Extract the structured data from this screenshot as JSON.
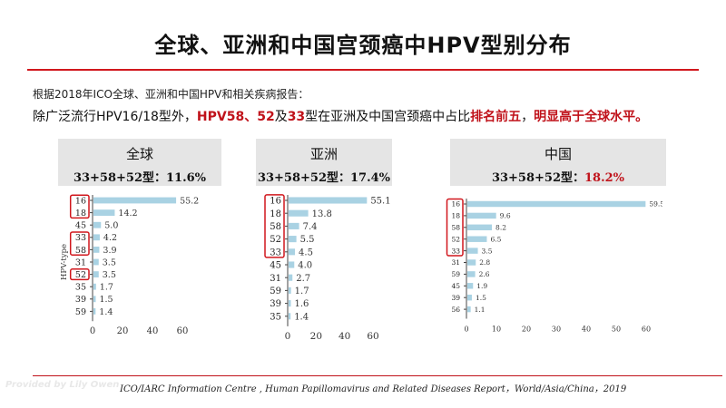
{
  "title": "全球、亚洲和中国宫颈癌中HPV型别分布",
  "intro_line1": "根据2018年ICO全球、亚洲和中国HPV和相关疾病报告：",
  "intro_line2": {
    "p1": "除广泛流行HPV16/18型外，",
    "p2": "HPV58、52",
    "p3": "及",
    "p4": "33",
    "p5": "型在亚洲及中国宫颈癌中占比",
    "p6": "排名前五",
    "p7": "，",
    "p8": "明显高于全球水平。"
  },
  "panels": [
    {
      "name": "全球",
      "stat_label": "33+58+52型：",
      "stat_value": "11.6%"
    },
    {
      "name": "亚洲",
      "stat_label": "33+58+52型：",
      "stat_value": "17.4%"
    },
    {
      "name": "中国",
      "stat_label": "33+58+52型：",
      "stat_value": "18.2%"
    }
  ],
  "chart_data": [
    {
      "type": "bar",
      "orientation": "horizontal",
      "ylabel": "HPV-type",
      "categories": [
        "16",
        "18",
        "45",
        "33",
        "58",
        "31",
        "52",
        "35",
        "39",
        "59"
      ],
      "values": [
        55.2,
        14.2,
        5.0,
        4.2,
        3.9,
        3.5,
        3.5,
        1.7,
        1.5,
        1.4
      ],
      "value_labels": [
        "55.2",
        "14.2",
        "5.0",
        "4.2",
        "3.9",
        "3.5",
        "3.5",
        "1.7",
        "1.5",
        "1.4"
      ],
      "highlighted": [
        "16",
        "18",
        "33",
        "58",
        "52"
      ],
      "xlim": [
        0,
        60
      ],
      "xticks": [
        "0",
        "20",
        "40",
        "60"
      ]
    },
    {
      "type": "bar",
      "orientation": "horizontal",
      "categories": [
        "16",
        "18",
        "58",
        "52",
        "33",
        "45",
        "31",
        "59",
        "39",
        "35"
      ],
      "values": [
        55.1,
        13.8,
        7.4,
        5.5,
        4.5,
        4.0,
        2.7,
        1.7,
        1.6,
        1.4
      ],
      "value_labels": [
        "55.1",
        "13.8",
        "7.4",
        "5.5",
        "4.5",
        "4.0",
        "2.7",
        "1.7",
        "1.6",
        "1.4"
      ],
      "highlighted": [
        "16",
        "18",
        "58",
        "52",
        "33"
      ],
      "xlim": [
        0,
        60
      ],
      "xticks": [
        "0",
        "20",
        "40",
        "60"
      ]
    },
    {
      "type": "bar",
      "orientation": "horizontal",
      "categories": [
        "16",
        "18",
        "58",
        "52",
        "33",
        "31",
        "59",
        "45",
        "39",
        "56"
      ],
      "values": [
        59.5,
        9.6,
        8.2,
        6.5,
        3.5,
        2.8,
        2.6,
        1.9,
        1.5,
        1.1
      ],
      "value_labels": [
        "59.5",
        "9.6",
        "8.2",
        "6.5",
        "3.5",
        "2.8",
        "2.6",
        "1.9",
        "1.5",
        "1.1"
      ],
      "highlighted": [
        "16",
        "18",
        "58",
        "52",
        "33"
      ],
      "xlim": [
        0,
        60
      ],
      "xticks": [
        "0",
        "10",
        "20",
        "30",
        "40",
        "50",
        "60"
      ]
    }
  ],
  "colors": {
    "bar": "#a9d2e3",
    "highlight": "#d1171d",
    "accent_red": "#c0121a",
    "header_bg": "#e5e5e5"
  },
  "footer": "ICO/IARC Information Centre , Human Papillomavirus and Related Diseases Report，World/Asia/China，2019",
  "watermark": "Provided by Lily Owen"
}
